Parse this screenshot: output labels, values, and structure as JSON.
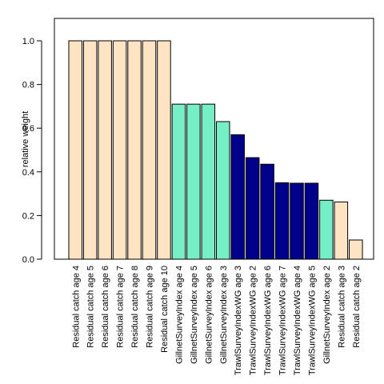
{
  "chart_data": {
    "type": "bar",
    "title": "",
    "xlabel": "",
    "ylabel": "relative weight",
    "ylim": [
      0,
      1.1
    ],
    "yticks": [
      0.0,
      0.2,
      0.4,
      0.6,
      0.8,
      1.0
    ],
    "ytick_labels": [
      "0.0",
      "0.2",
      "0.4",
      "0.6",
      "0.8",
      "1.0"
    ],
    "grid": false,
    "legend": "none",
    "colors": {
      "Residual catch": "#FFE4C4",
      "GillnetSurveyIndex": "#76EEC6",
      "TrawlSurveyIndexWG": "#00008B"
    },
    "bar_outline": "#000000",
    "categories": [
      "Residual catch age 4",
      "Residual catch age 5",
      "Residual catch age 6",
      "Residual catch age 7",
      "Residual catch age 8",
      "Residual catch age 9",
      "Residual catch age 10",
      "GillnetSurveyIndex age 4",
      "GillnetSurveyIndex age 5",
      "GillnetSurveyIndex age 6",
      "GillnetSurveyIndex age 3",
      "TrawlSurveyIndexWG age 3",
      "TrawlSurveyIndexWG age 2",
      "TrawlSurveyIndexWG age 6",
      "TrawlSurveyIndexWG age 7",
      "TrawlSurveyIndexWG age 4",
      "TrawlSurveyIndexWG age 5",
      "GillnetSurveyIndex age 2",
      "Residual catch age 3",
      "Residual catch age 2"
    ],
    "groups": [
      "Residual catch",
      "Residual catch",
      "Residual catch",
      "Residual catch",
      "Residual catch",
      "Residual catch",
      "Residual catch",
      "GillnetSurveyIndex",
      "GillnetSurveyIndex",
      "GillnetSurveyIndex",
      "GillnetSurveyIndex",
      "TrawlSurveyIndexWG",
      "TrawlSurveyIndexWG",
      "TrawlSurveyIndexWG",
      "TrawlSurveyIndexWG",
      "TrawlSurveyIndexWG",
      "TrawlSurveyIndexWG",
      "GillnetSurveyIndex",
      "Residual catch",
      "Residual catch"
    ],
    "values": [
      1.0,
      1.0,
      1.0,
      1.0,
      1.0,
      1.0,
      1.0,
      0.71,
      0.71,
      0.71,
      0.63,
      0.57,
      0.465,
      0.435,
      0.35,
      0.348,
      0.348,
      0.27,
      0.262,
      0.088
    ]
  }
}
